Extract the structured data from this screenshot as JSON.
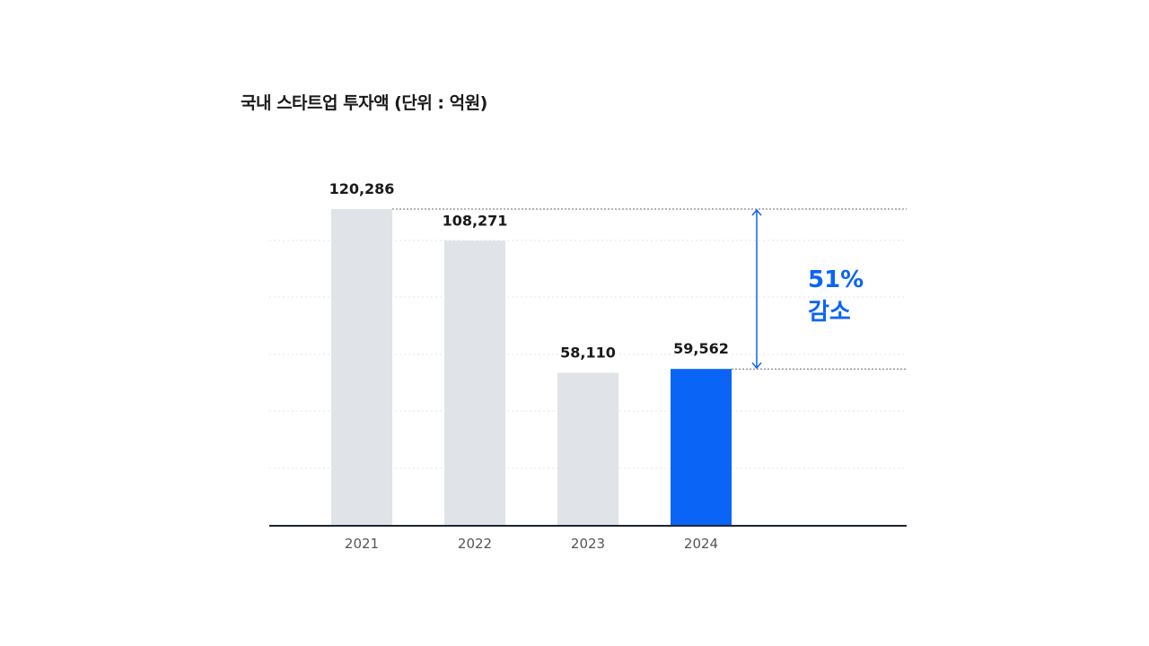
{
  "title": "국내 스타트업 투자액 (단위 : 억원)",
  "colors": {
    "bar_default": "#e0e3e7",
    "bar_highlight": "#0a64f5",
    "axis": "#1c2434",
    "grid": "#e2e5ea",
    "annotation": "#0a64f5"
  },
  "chart_data": {
    "type": "bar",
    "title": "국내 스타트업 투자액 (단위 : 억원)",
    "xlabel": "",
    "ylabel": "",
    "ylim": [
      0,
      120286
    ],
    "grid": true,
    "categories": [
      "2021",
      "2022",
      "2023",
      "2024"
    ],
    "values": [
      120286,
      108271,
      58110,
      59562
    ],
    "data_labels": [
      "120,286",
      "108,271",
      "58,110",
      "59,562"
    ],
    "highlight_category": "2024",
    "annotation": {
      "from_category": "2021",
      "to_category": "2024",
      "line1": "51%",
      "line2": "감소"
    }
  }
}
